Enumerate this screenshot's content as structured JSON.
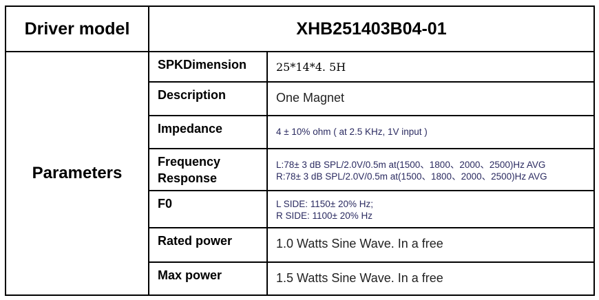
{
  "header": {
    "label": "Driver model",
    "model": "XHB251403B04-01"
  },
  "group_label": "Parameters",
  "rows": [
    {
      "label": "SPKDimension",
      "lines": [
        "25*14*4. 5H"
      ]
    },
    {
      "label": "Description",
      "lines": [
        "One Magnet"
      ]
    },
    {
      "label": "Impedance",
      "lines": [
        "4 ± 10% ohm ( at 2.5 KHz,  1V input )"
      ]
    },
    {
      "label": "Frequency Response",
      "lines": [
        "L:78± 3 dB SPL/2.0V/0.5m at(1500、1800、2000、2500)Hz AVG",
        "R:78± 3 dB SPL/2.0V/0.5m at(1500、1800、2000、2500)Hz AVG"
      ]
    },
    {
      "label": "F0",
      "lines": [
        "L SIDE: 1150± 20% Hz;",
        "R SIDE:  1100± 20% Hz"
      ]
    },
    {
      "label": "Rated power",
      "lines": [
        "1.0 Watts Sine Wave. In a free"
      ]
    },
    {
      "label": "Max power",
      "lines": [
        "1.5 Watts Sine Wave. In a free"
      ]
    }
  ]
}
